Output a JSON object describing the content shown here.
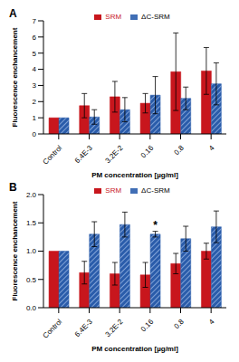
{
  "chart_data": [
    {
      "type": "bar",
      "title": "A",
      "x_label": "PM concentration [µg/ml]",
      "y_label": "Fluorescence enchancement",
      "categories": [
        "Control",
        "6.4E-3",
        "3.2E-2",
        "0.16",
        "0.8",
        "4"
      ],
      "series": [
        {
          "name": "SRM",
          "color": "#c8161d",
          "values": [
            1,
            1.75,
            2.3,
            1.9,
            3.85,
            3.9
          ],
          "errors": [
            0,
            0.75,
            0.95,
            0.6,
            2.4,
            1.45
          ]
        },
        {
          "name": "ΔC-SRM",
          "color": "#2a5caa",
          "values": [
            1,
            1.05,
            1.5,
            2.4,
            2.2,
            3.1
          ],
          "errors": [
            0,
            0.45,
            0.75,
            1.15,
            0.7,
            1.3
          ]
        }
      ],
      "ylim": [
        0,
        7
      ],
      "yticks": [
        0,
        1,
        2,
        3,
        4,
        5,
        6,
        7
      ],
      "legend": "top"
    },
    {
      "type": "bar",
      "title": "B",
      "x_label": "PM concentration [µg/ml]",
      "y_label": "Fluorescence enchancement",
      "categories": [
        "Control",
        "6.4E-3",
        "3.2E-2",
        "0.16",
        "0.8",
        "4"
      ],
      "series": [
        {
          "name": "SRM",
          "color": "#c8161d",
          "values": [
            1,
            0.62,
            0.6,
            0.58,
            0.78,
            1.0
          ],
          "errors": [
            0,
            0.2,
            0.2,
            0.22,
            0.18,
            0.14
          ]
        },
        {
          "name": "ΔC-SRM",
          "color": "#2a5caa",
          "values": [
            1,
            1.3,
            1.47,
            1.3,
            1.22,
            1.43
          ],
          "errors": [
            0,
            0.22,
            0.22,
            0.05,
            0.22,
            0.28
          ]
        }
      ],
      "ylim": [
        0,
        2
      ],
      "yticks": [
        {
          "value": 0,
          "label": "0.0"
        },
        {
          "value": 0.5,
          "label": "0.5"
        },
        {
          "value": 1,
          "label": "1.0"
        },
        {
          "value": 1.5,
          "label": "1.5"
        },
        {
          "value": 2,
          "label": "2.0"
        }
      ],
      "legend": "top",
      "annotations": [
        {
          "text": "*",
          "category": "0.16",
          "series": "ΔC-SRM"
        }
      ]
    }
  ]
}
